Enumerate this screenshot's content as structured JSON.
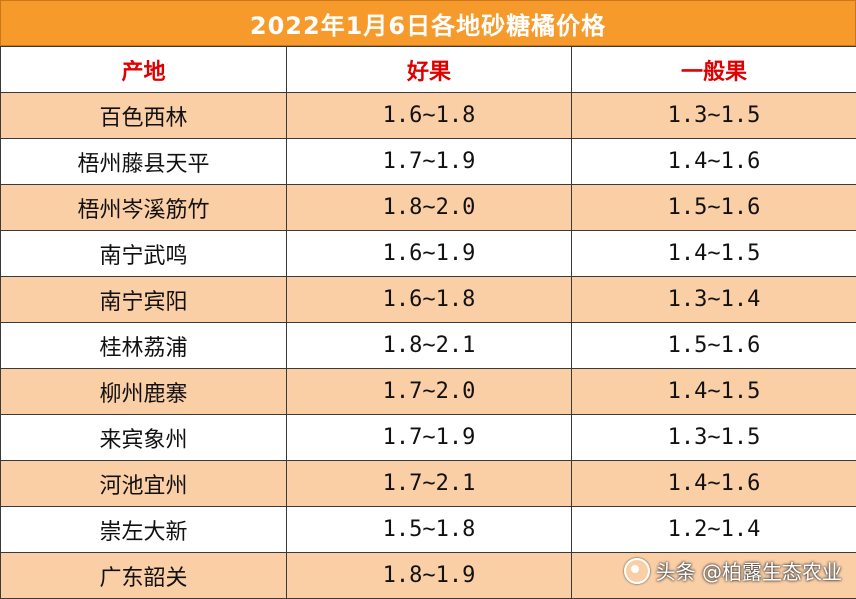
{
  "title": "2022年1月6日各地砂糖橘价格",
  "headers": [
    "产地",
    "好果",
    "一般果"
  ],
  "rows": [
    [
      "百色西林",
      "1.6~1.8",
      "1.3~1.5"
    ],
    [
      "梧州藤县天平",
      "1.7~1.9",
      "1.4~1.6"
    ],
    [
      "梧州岑溪筋竹",
      "1.8~2.0",
      "1.5~1.6"
    ],
    [
      "南宁武鸣",
      "1.6~1.9",
      "1.4~1.5"
    ],
    [
      "南宁宾阳",
      "1.6~1.8",
      "1.3~1.4"
    ],
    [
      "桂林荔浦",
      "1.8~2.1",
      "1.5~1.6"
    ],
    [
      "柳州鹿寨",
      "1.7~2.0",
      "1.4~1.5"
    ],
    [
      "来宾象州",
      "1.7~1.9",
      "1.3~1.5"
    ],
    [
      "河池宜州",
      "1.7~2.1",
      "1.4~1.6"
    ],
    [
      "崇左大新",
      "1.5~1.8",
      "1.2~1.4"
    ],
    [
      "广东韶关",
      "1.8~1.9",
      ""
    ]
  ],
  "colors": {
    "title_bg": "#f79a2c",
    "header_text": "#e00000",
    "stripe": "#fbcfa6"
  },
  "watermark": {
    "text": "头条 @柏露生态农业",
    "icon": "camera-lens-icon"
  }
}
